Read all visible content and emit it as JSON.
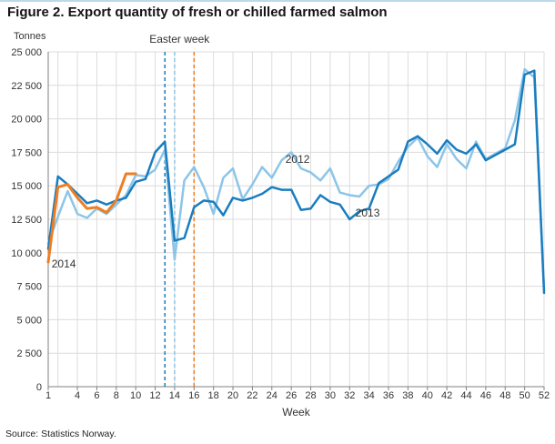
{
  "header": {
    "title": "Figure 2. Export quantity of fresh or chilled farmed salmon"
  },
  "chart": {
    "y_unit_label": "Tonnes",
    "x_axis_label": "Week",
    "easter_label": "Easter week",
    "source": "Source: Statistics Norway."
  },
  "colors": {
    "grid": "#dcdcdc",
    "axis": "#808080",
    "text": "#333333",
    "blue_dark": "#1a7dbe",
    "blue_light": "#8cc5e8",
    "orange": "#ef7d22"
  },
  "chart_data": {
    "type": "line",
    "title": "Export quantity of fresh or chilled farmed salmon",
    "xlabel": "Week",
    "ylabel": "Tonnes",
    "ylim": [
      0,
      25000
    ],
    "grid": true,
    "legend_position": "inline-labels",
    "y_ticks": [
      0,
      2500,
      5000,
      7500,
      10000,
      12500,
      15000,
      17500,
      20000,
      22500,
      25000
    ],
    "x_ticks": [
      1,
      4,
      6,
      8,
      10,
      12,
      14,
      16,
      18,
      20,
      22,
      24,
      26,
      28,
      30,
      32,
      34,
      36,
      38,
      40,
      42,
      44,
      46,
      48,
      50,
      52
    ],
    "x_start_week": 1,
    "x_end_week": 52,
    "series": [
      {
        "name": "2012",
        "color": "#8cc5e8",
        "stroke_width": 2.5,
        "start_week": 1,
        "values": [
          10700,
          12700,
          14600,
          12900,
          12600,
          13300,
          12900,
          13600,
          14300,
          15800,
          15700,
          16200,
          17700,
          9500,
          15400,
          16400,
          14900,
          12900,
          15600,
          16300,
          14000,
          15100,
          16400,
          15600,
          16900,
          17500,
          16300,
          16000,
          15400,
          16300,
          14500,
          14300,
          14200,
          15000,
          15100,
          15500,
          16800,
          17900,
          18600,
          17200,
          16400,
          18100,
          17000,
          16300,
          18300,
          17000,
          17400,
          17800,
          19900,
          23700,
          23100,
          7200
        ]
      },
      {
        "name": "2013",
        "color": "#1a7dbe",
        "stroke_width": 2.5,
        "start_week": 1,
        "values": [
          10300,
          15700,
          15100,
          14400,
          13700,
          13900,
          13600,
          13900,
          14100,
          15300,
          15500,
          17500,
          18300,
          10900,
          11100,
          13400,
          13900,
          13800,
          12800,
          14100,
          13900,
          14100,
          14400,
          14900,
          14700,
          14700,
          13200,
          13300,
          14300,
          13800,
          13600,
          12500,
          13100,
          13300,
          15200,
          15700,
          16200,
          18300,
          18700,
          18100,
          17400,
          18400,
          17700,
          17400,
          18100,
          16900,
          17300,
          17700,
          18100,
          23300,
          23600,
          7000
        ]
      },
      {
        "name": "2014",
        "color": "#ef7d22",
        "stroke_width": 3,
        "start_week": 1,
        "values": [
          9300,
          14900,
          15100,
          14100,
          13300,
          13400,
          13000,
          13900,
          15900,
          15900
        ]
      }
    ],
    "annotations": {
      "easter_lines": [
        {
          "year": "2013",
          "week": 13,
          "color": "#1a7dbe"
        },
        {
          "year": "2012",
          "week": 14,
          "color": "#8cc5e8"
        },
        {
          "year": "2014",
          "week": 16,
          "color": "#ef7d22"
        }
      ],
      "series_labels": [
        {
          "text": "2014",
          "week": 1.35,
          "value": 8900
        },
        {
          "text": "2012",
          "week": 25.4,
          "value": 16700
        },
        {
          "text": "2013",
          "week": 32.6,
          "value": 12700
        }
      ]
    }
  }
}
